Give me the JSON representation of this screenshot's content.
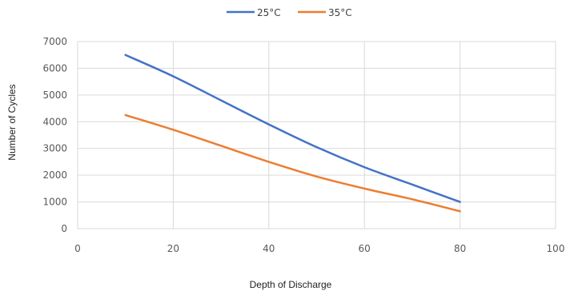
{
  "chart_data": {
    "type": "line",
    "title": "",
    "xlabel": "Depth of Discharge",
    "ylabel": "Number of Cycles",
    "xlim": [
      0,
      100
    ],
    "ylim": [
      0,
      7000
    ],
    "x_ticks": [
      0,
      20,
      40,
      60,
      80,
      100
    ],
    "y_ticks": [
      0,
      1000,
      2000,
      3000,
      4000,
      5000,
      6000,
      7000
    ],
    "grid": true,
    "legend_position": "top",
    "x": [
      10,
      20,
      30,
      40,
      50,
      60,
      70,
      80
    ],
    "series": [
      {
        "name": "25°C",
        "color": "#4472C4",
        "values": [
          6500,
          5700,
          4800,
          3900,
          3050,
          2300,
          1650,
          1000
        ]
      },
      {
        "name": "35°C",
        "color": "#ED7D31",
        "values": [
          4250,
          3700,
          3100,
          2500,
          1950,
          1500,
          1100,
          650
        ]
      }
    ]
  }
}
